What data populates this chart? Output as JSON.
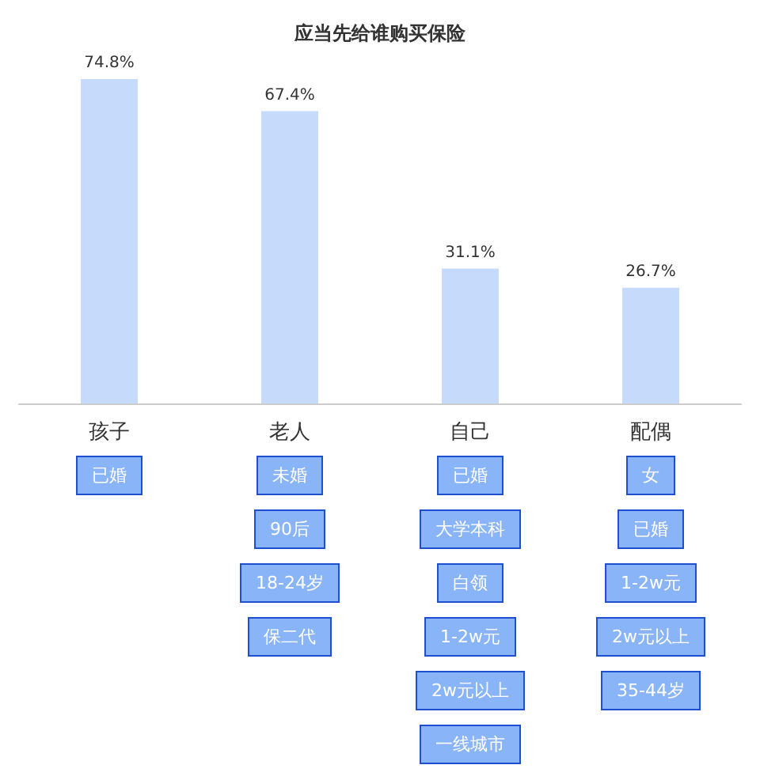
{
  "chart_data": {
    "type": "bar",
    "title": "应当先给谁购买保险",
    "categories": [
      "孩子",
      "老人",
      "自己",
      "配偶"
    ],
    "values": [
      74.8,
      67.4,
      31.1,
      26.7
    ],
    "color": "#c6dafc",
    "value_labels": [
      "74.8%",
      "67.4%",
      "31.1%",
      "26.7%"
    ],
    "annotations": [
      "已婚",
      "未婚",
      "90后",
      "18-24岁",
      "保二代",
      "已婚",
      "大学本科",
      "白领",
      "1-2w元",
      "2w元以上",
      "一线城市",
      "女",
      "已婚",
      "1-2w元",
      "2w元以上",
      "35-44岁"
    ]
  }
}
